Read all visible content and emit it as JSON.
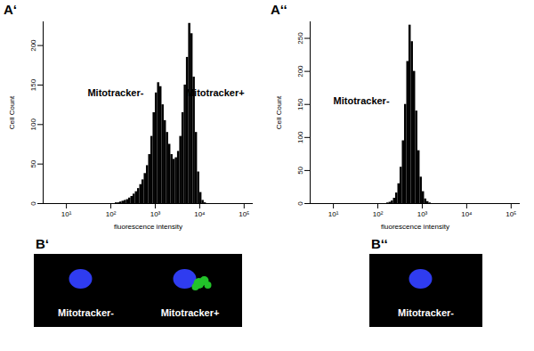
{
  "chart_data": [
    {
      "type": "histogram",
      "title": "A‘",
      "x_label": "fluorescence intensity",
      "y_label": "Cell Count",
      "color": "#000000",
      "log": "x",
      "xlim": [
        3,
        160000
      ],
      "xticks": [
        {
          "value": 10,
          "label": "10¹"
        },
        {
          "value": 100,
          "label": "10²"
        },
        {
          "value": 1000,
          "label": "10³"
        },
        {
          "value": 10000,
          "label": "10⁴"
        },
        {
          "value": 100000,
          "label": "10⁵"
        }
      ],
      "ylim": [
        0,
        230
      ],
      "yticks": [
        0,
        50,
        100,
        150,
        200
      ],
      "bins": [
        100,
        112,
        126,
        141,
        158,
        178,
        200,
        224,
        251,
        282,
        316,
        355,
        398,
        447,
        501,
        562,
        631,
        708,
        794,
        891,
        1000,
        1122,
        1259,
        1413,
        1585,
        1778,
        1995,
        2239,
        2512,
        2818,
        3162,
        3548,
        3981,
        4467,
        5012,
        5623,
        6310,
        7079,
        7943,
        8913,
        10000,
        11220,
        12589,
        14125,
        15849,
        17783,
        19953
      ],
      "counts": [
        0,
        0,
        1,
        1,
        2,
        3,
        4,
        5,
        7,
        9,
        12,
        15,
        19,
        24,
        30,
        38,
        48,
        62,
        85,
        115,
        140,
        153,
        148,
        125,
        105,
        90,
        75,
        62,
        56,
        58,
        66,
        85,
        115,
        150,
        185,
        228,
        215,
        160,
        90,
        40,
        14,
        4,
        1,
        0,
        0,
        0
      ],
      "annotations": [
        {
          "text": "Mitotracker-",
          "x": 30,
          "y": 140
        },
        {
          "text": "Mitotracker+",
          "x": 4900,
          "y": 140
        }
      ]
    },
    {
      "type": "histogram",
      "title": "A‘‘",
      "x_label": "fluorescence intensity",
      "y_label": "Cell Count",
      "color": "#000000",
      "log": "x",
      "xlim": [
        3,
        160000
      ],
      "xticks": [
        {
          "value": 10,
          "label": "10¹"
        },
        {
          "value": 100,
          "label": "10²"
        },
        {
          "value": 1000,
          "label": "10³"
        },
        {
          "value": 10000,
          "label": "10⁴"
        },
        {
          "value": 100000,
          "label": "10⁵"
        }
      ],
      "ylim": [
        0,
        275
      ],
      "yticks": [
        0,
        50,
        100,
        150,
        200,
        250
      ],
      "bins": [
        100,
        112,
        126,
        141,
        158,
        178,
        200,
        224,
        251,
        282,
        316,
        355,
        398,
        447,
        501,
        562,
        631,
        708,
        794,
        891,
        1000,
        1122,
        1259,
        1413,
        1585,
        1778,
        1995,
        2239,
        2512,
        2818,
        3162,
        3548,
        3981,
        4467,
        5012,
        5623,
        6310,
        7079,
        7943,
        8913,
        10000,
        11220,
        12589,
        14125,
        15849,
        17783,
        19953
      ],
      "counts": [
        0,
        0,
        0,
        0,
        1,
        2,
        4,
        8,
        16,
        30,
        55,
        95,
        150,
        215,
        270,
        245,
        200,
        140,
        80,
        40,
        18,
        7,
        3,
        1,
        0,
        0,
        0,
        0,
        0,
        0,
        0,
        0,
        0,
        0,
        0,
        0,
        0,
        0,
        0,
        0,
        0,
        0,
        0,
        0,
        0,
        0
      ],
      "annotations": [
        {
          "text": "Mitotracker-",
          "x": 10,
          "y": 155
        }
      ]
    }
  ],
  "images": [
    {
      "label": "B‘",
      "cells": [
        "Mitotracker-",
        "Mitotracker+"
      ]
    },
    {
      "label": "B‘‘",
      "cells": [
        "Mitotracker-"
      ]
    }
  ]
}
